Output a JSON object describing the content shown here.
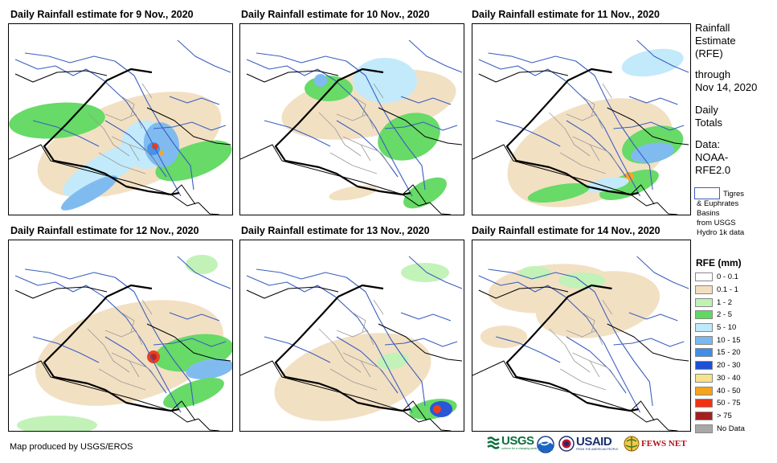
{
  "panels": [
    {
      "title": "Daily Rainfall estimate for 9 Nov., 2020"
    },
    {
      "title": "Daily Rainfall estimate for 10 Nov., 2020"
    },
    {
      "title": "Daily Rainfall estimate for 11 Nov., 2020"
    },
    {
      "title": "Daily Rainfall estimate for 12 Nov., 2020"
    },
    {
      "title": "Daily Rainfall estimate for 13 Nov., 2020"
    },
    {
      "title": "Daily Rainfall estimate for 14 Nov., 2020"
    }
  ],
  "sidebar": {
    "heading_lines": [
      "Rainfall",
      "Estimate",
      "(RFE)"
    ],
    "through_lines": [
      "through",
      "Nov 14, 2020"
    ],
    "totals_lines": [
      "Daily",
      "Totals"
    ],
    "data_lines": [
      "Data:",
      "NOAA-",
      "RFE2.0"
    ],
    "basin_note_lines": [
      "Tigres",
      "& Euphrates",
      "Basins",
      "from USGS",
      "Hydro 1k data"
    ]
  },
  "legend": {
    "title": "RFE (mm)",
    "items": [
      {
        "label": "0 - 0.1",
        "color": "#ffffff"
      },
      {
        "label": "0.1 - 1",
        "color": "#f2dfc0"
      },
      {
        "label": "1 - 2",
        "color": "#bff2b5"
      },
      {
        "label": "2 - 5",
        "color": "#5fd95f"
      },
      {
        "label": "5 - 10",
        "color": "#bfe9fb"
      },
      {
        "label": "10 - 15",
        "color": "#7ab8f0"
      },
      {
        "label": "15 - 20",
        "color": "#3d8fe8"
      },
      {
        "label": "20 - 30",
        "color": "#1f4fd6"
      },
      {
        "label": "30 - 40",
        "color": "#f6e38a"
      },
      {
        "label": "40 - 50",
        "color": "#f7a21b"
      },
      {
        "label": "50 - 75",
        "color": "#ef3412"
      },
      {
        "label": "> 75",
        "color": "#a51f1f"
      },
      {
        "label": "No Data",
        "color": "#a8a8a8"
      }
    ]
  },
  "credit": "Map produced by USGS/EROS",
  "logos": {
    "usgs": "USGS",
    "usgs_tag": "science for a changing world",
    "usaid": "USAID",
    "usaid_tag": "FROM THE AMERICAN PEOPLE",
    "fewsnet": "FEWS NET"
  }
}
